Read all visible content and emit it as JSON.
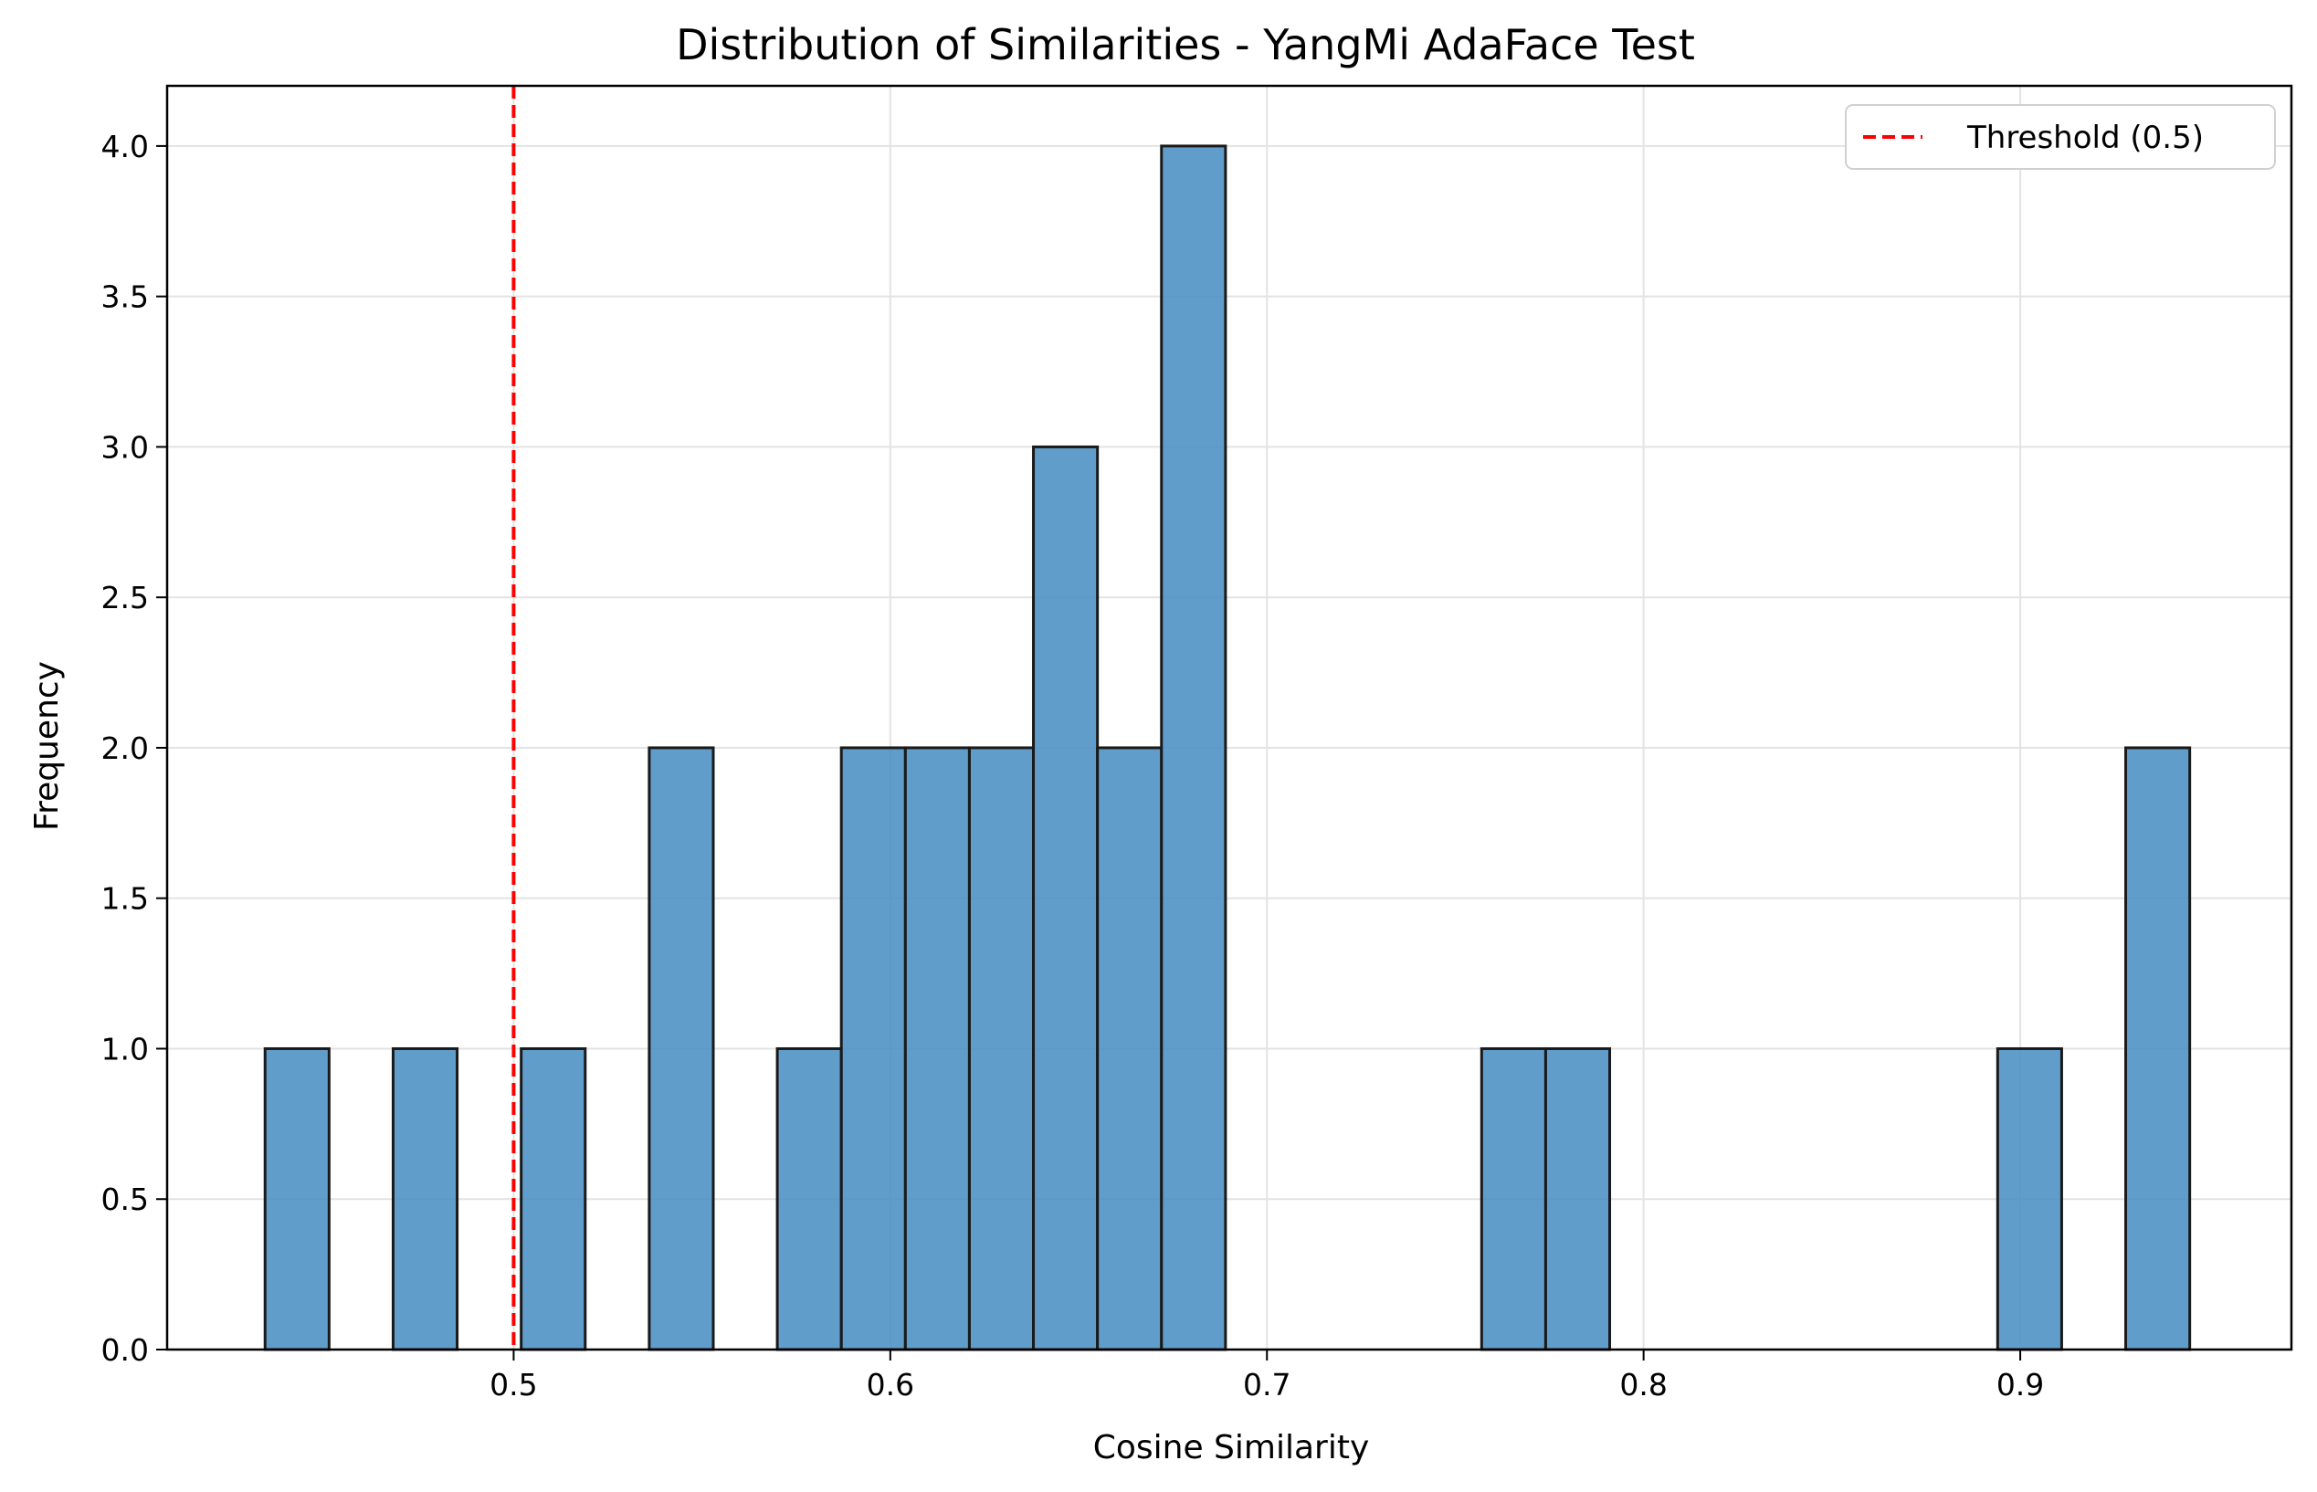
{
  "chart_data": {
    "type": "bar",
    "title": "Distribution of Similarities - YangMi AdaFace Test",
    "xlabel": "Cosine Similarity",
    "ylabel": "Frequency",
    "xlim": [
      0.408,
      0.972
    ],
    "ylim": [
      0,
      4.2
    ],
    "x_ticks": [
      0.5,
      0.6,
      0.7,
      0.8,
      0.9
    ],
    "x_tick_labels": [
      "0.5",
      "0.6",
      "0.7",
      "0.8",
      "0.9"
    ],
    "y_ticks": [
      0,
      0.5,
      1,
      1.5,
      2,
      2.5,
      3,
      3.5,
      4
    ],
    "y_tick_labels": [
      "0.0",
      "0.5",
      "1.0",
      "1.5",
      "2.0",
      "2.5",
      "3.0",
      "3.5",
      "4.0"
    ],
    "grid": true,
    "bar_color": "#4a90c4",
    "bar_edge_color": "#1a1a1a",
    "bins": [
      {
        "x0": 0.434,
        "x1": 0.451,
        "count": 1
      },
      {
        "x0": 0.468,
        "x1": 0.485,
        "count": 1
      },
      {
        "x0": 0.502,
        "x1": 0.519,
        "count": 1
      },
      {
        "x0": 0.536,
        "x1": 0.553,
        "count": 2
      },
      {
        "x0": 0.57,
        "x1": 0.587,
        "count": 1
      },
      {
        "x0": 0.587,
        "x1": 0.604,
        "count": 2
      },
      {
        "x0": 0.604,
        "x1": 0.621,
        "count": 2
      },
      {
        "x0": 0.621,
        "x1": 0.638,
        "count": 2
      },
      {
        "x0": 0.638,
        "x1": 0.655,
        "count": 3
      },
      {
        "x0": 0.655,
        "x1": 0.672,
        "count": 2
      },
      {
        "x0": 0.672,
        "x1": 0.689,
        "count": 4
      },
      {
        "x0": 0.757,
        "x1": 0.774,
        "count": 1
      },
      {
        "x0": 0.774,
        "x1": 0.791,
        "count": 1
      },
      {
        "x0": 0.894,
        "x1": 0.911,
        "count": 1
      },
      {
        "x0": 0.928,
        "x1": 0.945,
        "count": 2
      }
    ],
    "threshold": {
      "value": 0.5,
      "label": "Threshold (0.5)",
      "color": "#ff0000",
      "style": "dashed"
    },
    "legend": {
      "position": "top-right",
      "entries": [
        "Threshold (0.5)"
      ]
    }
  }
}
